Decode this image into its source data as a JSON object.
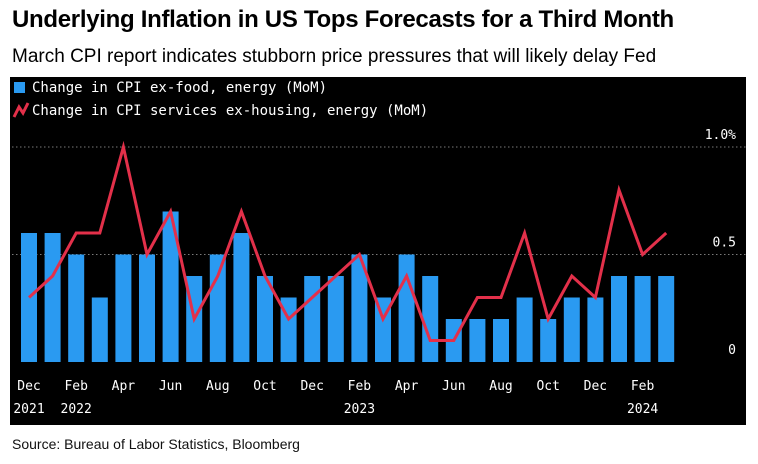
{
  "header": {
    "title": "Underlying Inflation in US Tops Forecasts for a Third Month",
    "subtitle": "March CPI report indicates stubborn price pressures that will likely delay Fed"
  },
  "footer": {
    "source": "Source: Bureau of Labor Statistics, Bloomberg"
  },
  "colors": {
    "background": "#000000",
    "bar": "#2a9af1",
    "line": "#e3304a",
    "text": "#ffffff",
    "grid": "#7a7a7a"
  },
  "chart_data": {
    "type": "bar",
    "x": [
      "2021-12",
      "2022-01",
      "2022-02",
      "2022-03",
      "2022-04",
      "2022-05",
      "2022-06",
      "2022-07",
      "2022-08",
      "2022-09",
      "2022-10",
      "2022-11",
      "2022-12",
      "2023-01",
      "2023-02",
      "2023-03",
      "2023-04",
      "2023-05",
      "2023-06",
      "2023-07",
      "2023-08",
      "2023-09",
      "2023-10",
      "2023-11",
      "2023-12",
      "2024-01",
      "2024-02",
      "2024-03"
    ],
    "series": [
      {
        "name": "Change in CPI ex-food, energy (MoM)",
        "type": "bar",
        "values": [
          0.6,
          0.6,
          0.5,
          0.3,
          0.5,
          0.5,
          0.7,
          0.4,
          0.5,
          0.6,
          0.4,
          0.3,
          0.4,
          0.4,
          0.5,
          0.3,
          0.5,
          0.4,
          0.2,
          0.2,
          0.2,
          0.3,
          0.2,
          0.3,
          0.3,
          0.4,
          0.4,
          0.4
        ]
      },
      {
        "name": "Change in CPI services ex-housing, energy (MoM)",
        "type": "line",
        "values": [
          0.3,
          0.4,
          0.6,
          0.6,
          1.0,
          0.5,
          0.7,
          0.2,
          0.4,
          0.7,
          0.4,
          0.2,
          0.3,
          0.4,
          0.5,
          0.2,
          0.4,
          0.1,
          0.1,
          0.3,
          0.3,
          0.6,
          0.2,
          0.4,
          0.3,
          0.8,
          0.5,
          0.6
        ]
      }
    ],
    "x_tick_labels": [
      {
        "month": "Dec",
        "year": "2021"
      },
      {
        "month": "Feb",
        "year": "2022"
      },
      {
        "month": "Apr",
        "year": ""
      },
      {
        "month": "Jun",
        "year": ""
      },
      {
        "month": "Aug",
        "year": ""
      },
      {
        "month": "Oct",
        "year": ""
      },
      {
        "month": "Dec",
        "year": ""
      },
      {
        "month": "Feb",
        "year": "2023"
      },
      {
        "month": "Apr",
        "year": ""
      },
      {
        "month": "Jun",
        "year": ""
      },
      {
        "month": "Aug",
        "year": ""
      },
      {
        "month": "Oct",
        "year": ""
      },
      {
        "month": "Dec",
        "year": ""
      },
      {
        "month": "Feb",
        "year": "2024"
      }
    ],
    "y_ticks": [
      {
        "value": 1.0,
        "label": "1.0%"
      },
      {
        "value": 0.5,
        "label": "0.5"
      },
      {
        "value": 0,
        "label": "0"
      }
    ],
    "ylim": [
      0,
      1.0
    ],
    "grid": true,
    "legend_position": "top-left"
  }
}
